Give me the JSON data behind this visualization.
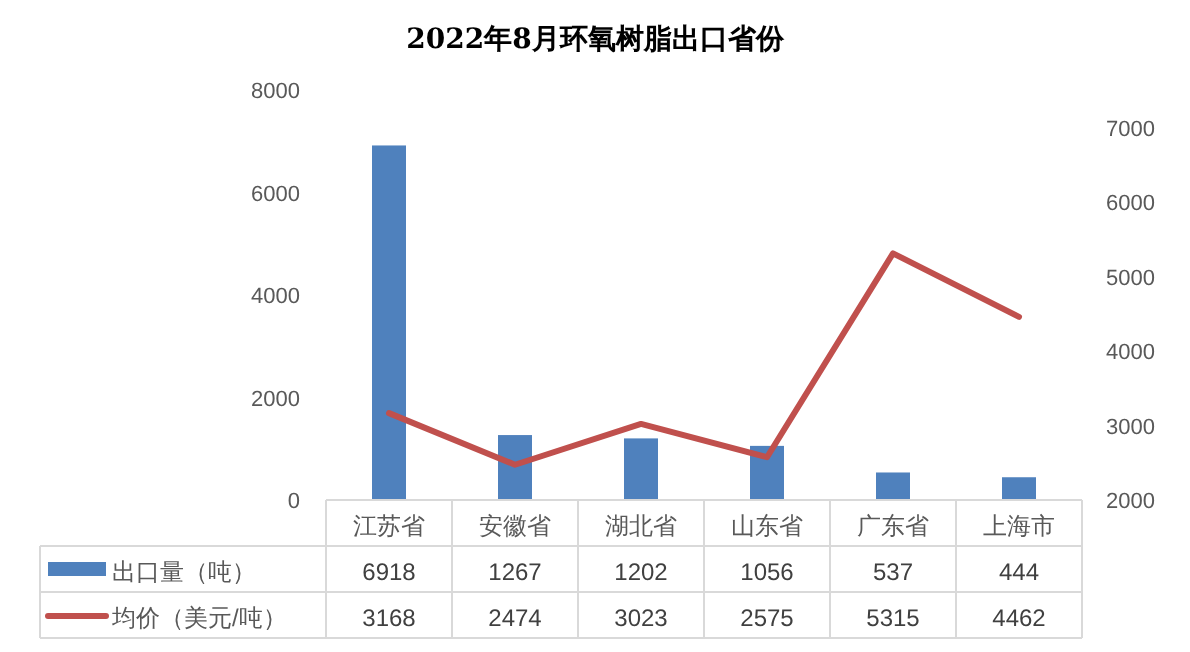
{
  "chart_data": {
    "type": "bar",
    "title": "2022年8月环氧树脂出口省份",
    "categories": [
      "江苏省",
      "安徽省",
      "湖北省",
      "山东省",
      "广东省",
      "上海市"
    ],
    "series": [
      {
        "name": "出口量（吨）",
        "color": "#4f81bd",
        "values": [
          6918,
          1267,
          1202,
          1056,
          537,
          444
        ]
      },
      {
        "name": "均价（美元/吨）",
        "type": "line",
        "axis": "y2",
        "color": "#c0504d",
        "values": [
          3168,
          2474,
          3023,
          2575,
          5315,
          4462
        ]
      }
    ],
    "ylim": [
      0,
      8000
    ],
    "yticks": [
      0,
      2000,
      4000,
      6000,
      8000
    ],
    "y2lim": [
      2000,
      7000
    ],
    "y2ticks": [
      2000,
      3000,
      4000,
      5000,
      6000,
      7000
    ],
    "data_labels": true,
    "legend": "bottom"
  }
}
